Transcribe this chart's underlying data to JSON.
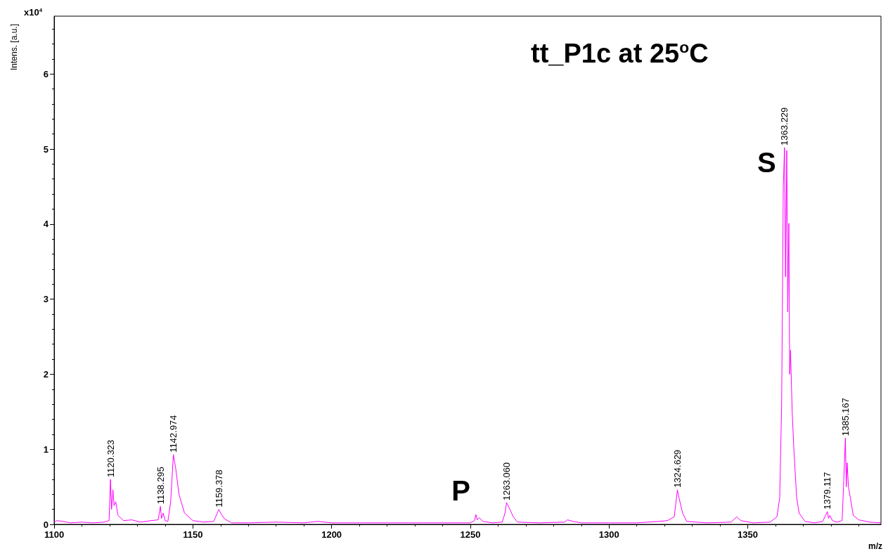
{
  "chart_data": {
    "type": "line",
    "title": "tt_P1c at 25$^{o}$C",
    "xlabel": "m/z",
    "ylabel": "Intens. [a.u.]",
    "xlim": [
      1100,
      1398
    ],
    "xticks": [
      1100,
      1150,
      1200,
      1250,
      1300,
      1350
    ],
    "ylim": [
      0,
      6.77
    ],
    "yticks": [
      0,
      1,
      2,
      3,
      4,
      5,
      6
    ],
    "grid": false,
    "marker": "none",
    "line_style": "solid",
    "series": [
      {
        "color": "#ff00ff",
        "x": [
          1100,
          1101,
          1103,
          1106,
          1110,
          1114,
          1118,
          1119.8,
          1120.3,
          1120.7,
          1121.2,
          1121.6,
          1122.2,
          1123,
          1125,
          1128,
          1131,
          1135,
          1137.5,
          1138.3,
          1138.7,
          1139.3,
          1140,
          1141,
          1142,
          1142.97,
          1143.8,
          1145,
          1147,
          1150,
          1154,
          1157.5,
          1159.38,
          1160,
          1161.5,
          1164,
          1170,
          1180,
          1190,
          1195,
          1200,
          1210,
          1220,
          1230,
          1240,
          1250,
          1251.5,
          1252,
          1252.5,
          1253.2,
          1254.5,
          1258,
          1261.5,
          1262.5,
          1263.06,
          1264,
          1265.5,
          1267,
          1275,
          1284,
          1285,
          1287,
          1290,
          1300,
          1310,
          1318,
          1321,
          1323.5,
          1324.63,
          1325.3,
          1326.5,
          1328,
          1335,
          1344,
          1346,
          1347.5,
          1352,
          1358,
          1360.5,
          1361.5,
          1362.2,
          1362.8,
          1363.23,
          1363.6,
          1364.05,
          1364.4,
          1364.8,
          1365.1,
          1365.4,
          1366,
          1366.6,
          1367.6,
          1368.5,
          1370.6,
          1374,
          1377,
          1378.7,
          1379.1,
          1379.6,
          1380.5,
          1382,
          1384,
          1384.5,
          1385.17,
          1385.5,
          1385.8,
          1386.3,
          1387,
          1388,
          1390,
          1394,
          1398
        ],
        "values": [
          0.03,
          0.05,
          0.04,
          0.02,
          0.03,
          0.02,
          0.03,
          0.05,
          0.6,
          0.2,
          0.46,
          0.25,
          0.3,
          0.12,
          0.05,
          0.06,
          0.03,
          0.05,
          0.06,
          0.24,
          0.08,
          0.15,
          0.05,
          0.04,
          0.3,
          0.93,
          0.75,
          0.4,
          0.15,
          0.05,
          0.03,
          0.04,
          0.2,
          0.15,
          0.07,
          0.02,
          0.02,
          0.03,
          0.02,
          0.04,
          0.02,
          0.02,
          0.02,
          0.02,
          0.02,
          0.02,
          0.05,
          0.13,
          0.06,
          0.09,
          0.04,
          0.02,
          0.03,
          0.15,
          0.29,
          0.22,
          0.1,
          0.03,
          0.02,
          0.03,
          0.06,
          0.04,
          0.02,
          0.02,
          0.02,
          0.04,
          0.05,
          0.1,
          0.46,
          0.34,
          0.15,
          0.04,
          0.02,
          0.03,
          0.1,
          0.05,
          0.02,
          0.03,
          0.1,
          0.35,
          1.6,
          4.5,
          5.02,
          3.3,
          4.98,
          2.83,
          4.01,
          2.0,
          2.32,
          1.5,
          1.01,
          0.36,
          0.15,
          0.04,
          0.02,
          0.04,
          0.17,
          0.08,
          0.12,
          0.05,
          0.03,
          0.05,
          0.5,
          1.15,
          0.5,
          0.82,
          0.49,
          0.35,
          0.12,
          0.06,
          0.03,
          0.02
        ]
      }
    ],
    "annotations": [
      "x10$^{4}$",
      {
        "text": "1120.323",
        "x": 1120.3,
        "y": 0.6
      },
      {
        "text": "1138.295",
        "x": 1138.3,
        "y": 0.24
      },
      {
        "text": "1142.974",
        "x": 1142.97,
        "y": 0.93
      },
      {
        "text": "1159.378",
        "x": 1159.38,
        "y": 0.2
      },
      {
        "text": "1263.060",
        "x": 1263.06,
        "y": 0.29
      },
      {
        "text": "1324.629",
        "x": 1324.63,
        "y": 0.46
      },
      {
        "text": "1363.229",
        "x": 1363.23,
        "y": 5.02
      },
      {
        "text": "1379.117",
        "x": 1378.7,
        "y": 0.17
      },
      {
        "text": "1385.167",
        "x": 1385.17,
        "y": 1.15
      },
      {
        "text": "P",
        "x": 1252,
        "y": 0.13
      },
      {
        "text": "S",
        "x": 1362.2,
        "y": 4.5
      }
    ]
  }
}
